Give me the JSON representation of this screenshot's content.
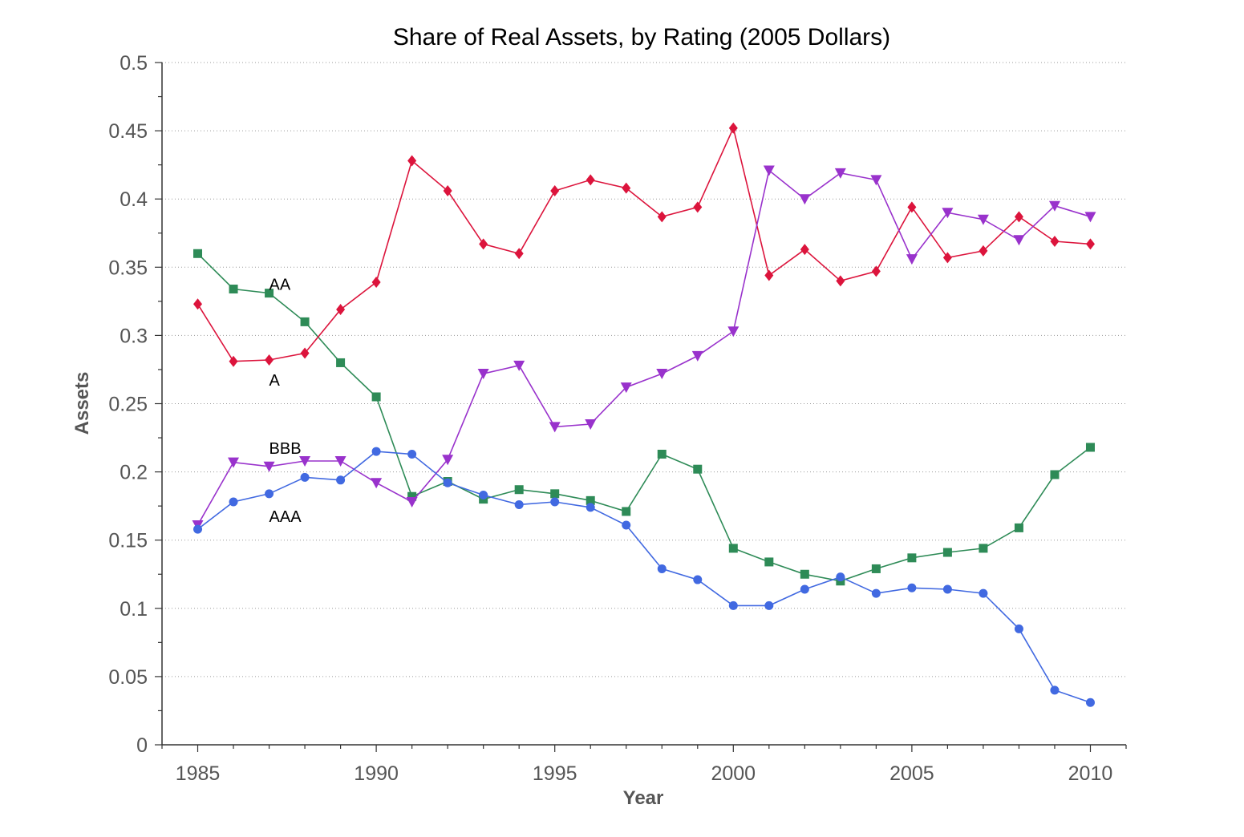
{
  "chart_data": {
    "type": "line",
    "title": "Share of Real Assets, by Rating (2005 Dollars)",
    "xlabel": "Year",
    "ylabel": "Assets",
    "xlim": [
      1984,
      2011
    ],
    "ylim": [
      0,
      0.5
    ],
    "x_ticks": [
      1985,
      1990,
      1995,
      2000,
      2005,
      2010
    ],
    "y_ticks": [
      0,
      0.05,
      0.1,
      0.15,
      0.2,
      0.25,
      0.3,
      0.35,
      0.4,
      0.45,
      0.5
    ],
    "y_tick_labels": [
      "0",
      "0.05",
      "0.1",
      "0.15",
      "0.2",
      "0.25",
      "0.3",
      "0.35",
      "0.4",
      "0.45",
      "0.5"
    ],
    "grid": "horizontal dotted",
    "x": [
      1985,
      1986,
      1987,
      1988,
      1989,
      1990,
      1991,
      1992,
      1993,
      1994,
      1995,
      1996,
      1997,
      1998,
      1999,
      2000,
      2001,
      2002,
      2003,
      2004,
      2005,
      2006,
      2007,
      2008,
      2009,
      2010
    ],
    "series": [
      {
        "name": "AA",
        "color": "#2e8b57",
        "marker": "square",
        "values": [
          0.36,
          0.334,
          0.331,
          0.31,
          0.28,
          0.255,
          0.182,
          0.193,
          0.18,
          0.187,
          0.184,
          0.179,
          0.171,
          0.213,
          0.202,
          0.144,
          0.134,
          0.125,
          0.12,
          0.129,
          0.137,
          0.141,
          0.144,
          0.159,
          0.198,
          0.218
        ]
      },
      {
        "name": "A",
        "color": "#dc143c",
        "marker": "diamond",
        "values": [
          0.323,
          0.281,
          0.282,
          0.287,
          0.319,
          0.339,
          0.428,
          0.406,
          0.367,
          0.36,
          0.406,
          0.414,
          0.408,
          0.387,
          0.394,
          0.452,
          0.344,
          0.363,
          0.34,
          0.347,
          0.394,
          0.357,
          0.362,
          0.387,
          0.369,
          0.367
        ]
      },
      {
        "name": "BBB",
        "color": "#9932cc",
        "marker": "triangle-down",
        "values": [
          0.161,
          0.207,
          0.204,
          0.208,
          0.208,
          0.192,
          0.178,
          0.209,
          0.272,
          0.278,
          0.233,
          0.235,
          0.262,
          0.272,
          0.285,
          0.303,
          0.421,
          0.4,
          0.419,
          0.414,
          0.356,
          0.39,
          0.385,
          0.37,
          0.395,
          0.387
        ]
      },
      {
        "name": "AAA",
        "color": "#4169e1",
        "marker": "circle",
        "values": [
          0.158,
          0.178,
          0.184,
          0.196,
          0.194,
          0.215,
          0.213,
          0.192,
          0.183,
          0.176,
          0.178,
          0.174,
          0.161,
          0.129,
          0.121,
          0.102,
          0.102,
          0.114,
          0.123,
          0.111,
          0.115,
          0.114,
          0.111,
          0.085,
          0.04,
          0.031
        ]
      }
    ],
    "annotations": [
      {
        "text": "AA",
        "series": "AA",
        "x": 1987,
        "y": 0.338
      },
      {
        "text": "A",
        "series": "A",
        "x": 1987,
        "y": 0.268
      },
      {
        "text": "BBB",
        "series": "BBB",
        "x": 1987,
        "y": 0.218
      },
      {
        "text": "AAA",
        "series": "AAA",
        "x": 1987,
        "y": 0.168
      }
    ]
  }
}
